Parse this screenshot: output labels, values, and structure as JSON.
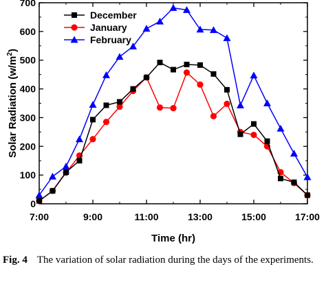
{
  "chart_data": {
    "type": "line",
    "xlabel": "Time (hr)",
    "ylabel_prefix": "Solar Radiation (w/m",
    "ylabel_sup": "2",
    "ylabel_suffix": ")",
    "xlim": [
      7,
      17
    ],
    "ylim": [
      0,
      700
    ],
    "x_ticks": [
      {
        "value": 7,
        "label": "7:00"
      },
      {
        "value": 9,
        "label": "9:00"
      },
      {
        "value": 11,
        "label": "11:00"
      },
      {
        "value": 13,
        "label": "13:00"
      },
      {
        "value": 15,
        "label": "15:00"
      },
      {
        "value": 17,
        "label": "17:00"
      }
    ],
    "y_ticks": [
      0,
      100,
      200,
      300,
      400,
      500,
      600,
      700
    ],
    "grid": false,
    "legend_position": "top-left",
    "x": [
      7,
      7.5,
      8,
      8.5,
      9,
      9.5,
      10,
      10.5,
      11,
      11.5,
      12,
      12.5,
      13,
      13.5,
      14,
      14.5,
      15,
      15.5,
      16,
      16.5,
      17
    ],
    "series": [
      {
        "name": "December",
        "color": "#000000",
        "marker": "square",
        "values": [
          10,
          45,
          110,
          150,
          293,
          343,
          355,
          400,
          440,
          492,
          467,
          485,
          483,
          452,
          397,
          242,
          278,
          218,
          88,
          75,
          30
        ]
      },
      {
        "name": "January",
        "color": "#ff0000",
        "marker": "circle",
        "values": [
          10,
          45,
          108,
          168,
          225,
          285,
          338,
          393,
          440,
          335,
          333,
          457,
          415,
          305,
          348,
          250,
          240,
          200,
          110,
          72,
          30
        ]
      },
      {
        "name": "February",
        "color": "#0000ff",
        "marker": "triangle",
        "values": [
          30,
          95,
          130,
          225,
          345,
          448,
          512,
          548,
          610,
          635,
          682,
          675,
          607,
          605,
          577,
          343,
          447,
          350,
          262,
          175,
          93
        ]
      }
    ]
  },
  "caption": {
    "label": "Fig. 4",
    "text": "The variation of solar radiation during the days of the experiments."
  }
}
